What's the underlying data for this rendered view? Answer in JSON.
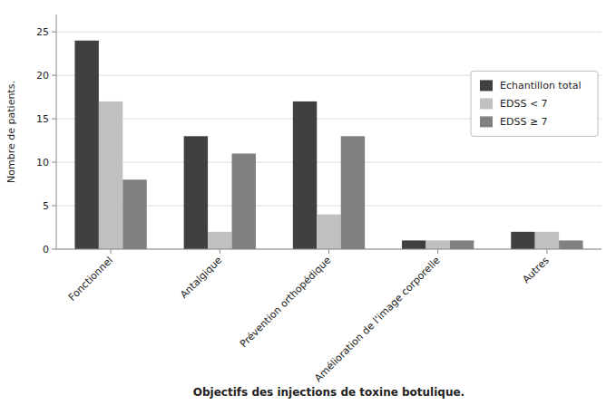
{
  "chart_data": {
    "type": "bar",
    "categories": [
      "Fonctionnel",
      "Antalgique",
      "Prévention orthopédique",
      "Amélioration de l'image corporelle",
      "Autres"
    ],
    "series": [
      {
        "name": "Echantillon total",
        "color": "#404040",
        "values": [
          24,
          13,
          17,
          1,
          2
        ]
      },
      {
        "name": "EDSS < 7",
        "color": "#c0c0c0",
        "values": [
          17,
          2,
          4,
          1,
          2
        ]
      },
      {
        "name": "EDSS ≥ 7",
        "color": "#808080",
        "values": [
          8,
          11,
          13,
          1,
          1
        ]
      }
    ],
    "xlabel": "Objectifs des injections de toxine botulique.",
    "ylabel": "Nombre de patients.",
    "ylim": [
      0,
      27
    ],
    "yticks": [
      0,
      5,
      10,
      15,
      20,
      25
    ],
    "grid": true,
    "legend": "right"
  }
}
